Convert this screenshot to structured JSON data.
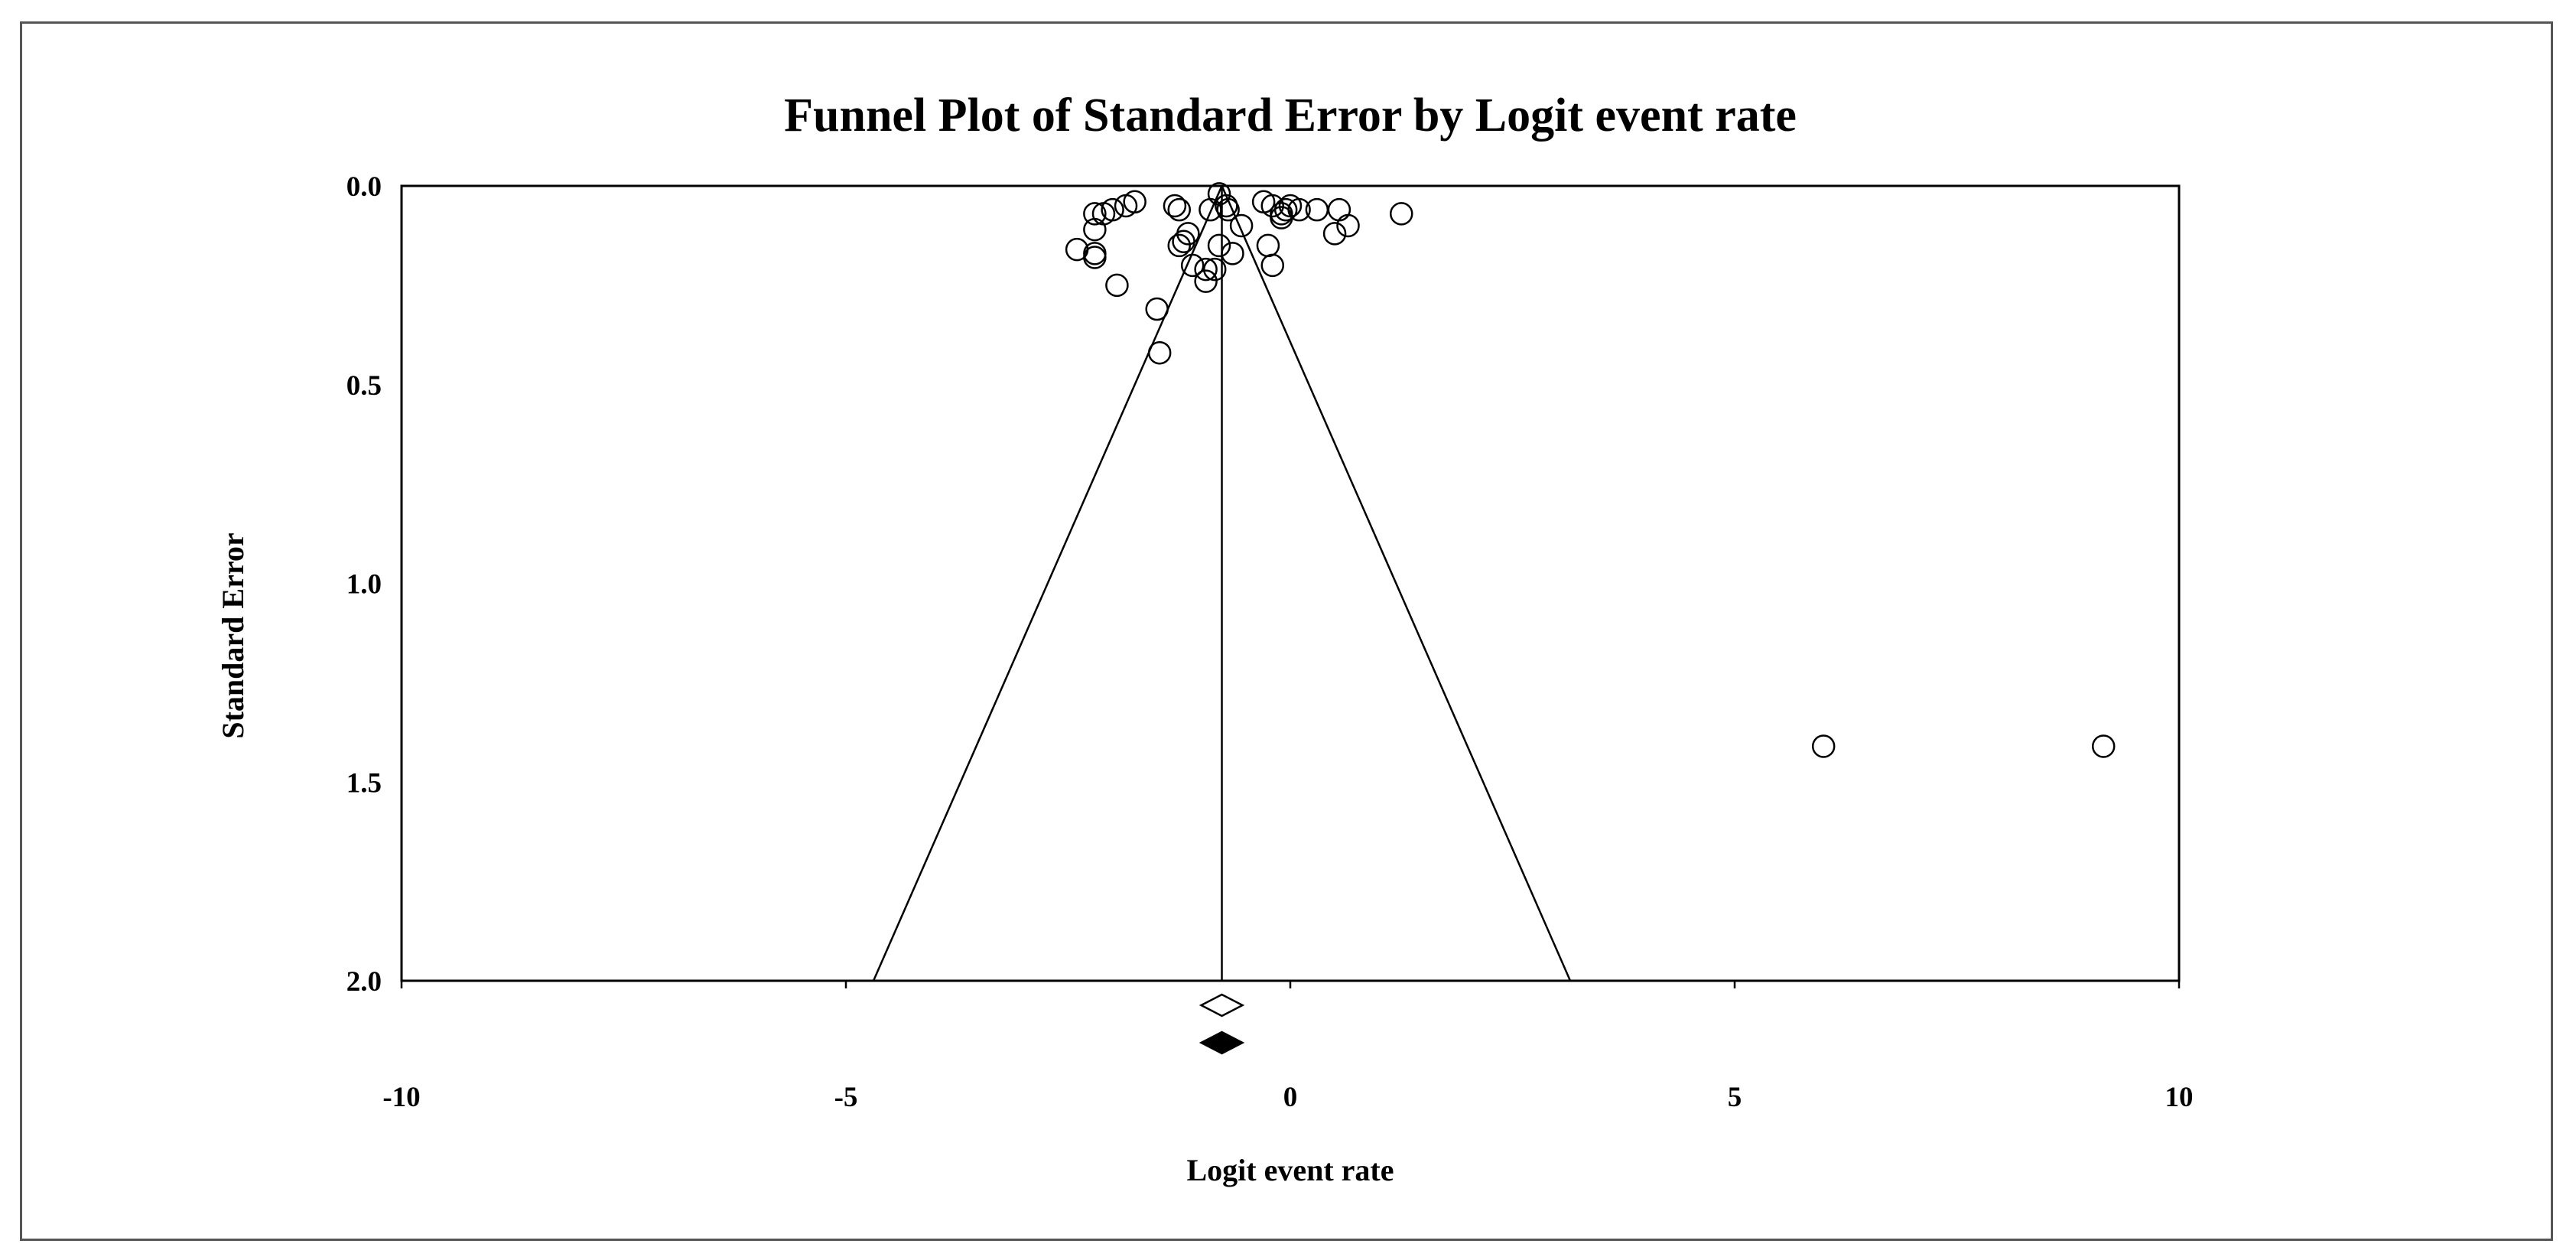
{
  "chart_data": {
    "type": "scatter",
    "title": "Funnel Plot of Standard Error by Logit event rate",
    "xlabel": "Logit event rate",
    "ylabel": "Standard Error",
    "xlim": [
      -10,
      10
    ],
    "ylim": [
      0,
      2
    ],
    "y_inverted": true,
    "xticks": [
      -10,
      -5,
      0,
      5,
      10
    ],
    "xtick_labels": [
      "-10",
      "-5",
      "0",
      "5",
      "10"
    ],
    "yticks": [
      0,
      0.5,
      1,
      1.5,
      2
    ],
    "ytick_labels": [
      "0.0",
      "0.5",
      "1.0",
      "1.5",
      "2.0"
    ],
    "grid": false,
    "legend": "none",
    "pooled_estimate": -0.77,
    "funnel_limits_at_se_2": [
      -4.69,
      3.15
    ],
    "summary_diamonds": [
      {
        "name": "observed",
        "center": -0.77,
        "fill": "#ffffff"
      },
      {
        "name": "imputed",
        "center": -0.77,
        "fill": "#000000"
      }
    ],
    "points": [
      {
        "x": -0.8,
        "y": 0.02
      },
      {
        "x": -0.72,
        "y": 0.05
      },
      {
        "x": -0.7,
        "y": 0.06
      },
      {
        "x": -0.3,
        "y": 0.04
      },
      {
        "x": -0.2,
        "y": 0.05
      },
      {
        "x": -0.1,
        "y": 0.07
      },
      {
        "x": -0.05,
        "y": 0.06
      },
      {
        "x": 0.0,
        "y": 0.05
      },
      {
        "x": 0.1,
        "y": 0.06
      },
      {
        "x": 0.3,
        "y": 0.06
      },
      {
        "x": 0.55,
        "y": 0.06
      },
      {
        "x": 0.65,
        "y": 0.1
      },
      {
        "x": 0.5,
        "y": 0.12
      },
      {
        "x": 1.25,
        "y": 0.07
      },
      {
        "x": -0.55,
        "y": 0.1
      },
      {
        "x": -0.1,
        "y": 0.08
      },
      {
        "x": -1.75,
        "y": 0.04
      },
      {
        "x": -1.85,
        "y": 0.05
      },
      {
        "x": -2.0,
        "y": 0.06
      },
      {
        "x": -2.1,
        "y": 0.07
      },
      {
        "x": -2.2,
        "y": 0.07
      },
      {
        "x": -2.2,
        "y": 0.11
      },
      {
        "x": -2.4,
        "y": 0.16
      },
      {
        "x": -2.2,
        "y": 0.17
      },
      {
        "x": -2.2,
        "y": 0.18
      },
      {
        "x": -1.95,
        "y": 0.25
      },
      {
        "x": -1.3,
        "y": 0.05
      },
      {
        "x": -1.25,
        "y": 0.06
      },
      {
        "x": -1.15,
        "y": 0.12
      },
      {
        "x": -1.2,
        "y": 0.14
      },
      {
        "x": -1.25,
        "y": 0.15
      },
      {
        "x": -1.1,
        "y": 0.2
      },
      {
        "x": -0.95,
        "y": 0.21
      },
      {
        "x": -0.95,
        "y": 0.24
      },
      {
        "x": -0.9,
        "y": 0.06
      },
      {
        "x": -0.8,
        "y": 0.15
      },
      {
        "x": -0.85,
        "y": 0.21
      },
      {
        "x": -0.65,
        "y": 0.17
      },
      {
        "x": -0.25,
        "y": 0.15
      },
      {
        "x": -0.2,
        "y": 0.2
      },
      {
        "x": -1.5,
        "y": 0.31
      },
      {
        "x": -1.47,
        "y": 0.42
      },
      {
        "x": 6.0,
        "y": 1.41
      },
      {
        "x": 9.15,
        "y": 1.41
      }
    ]
  }
}
